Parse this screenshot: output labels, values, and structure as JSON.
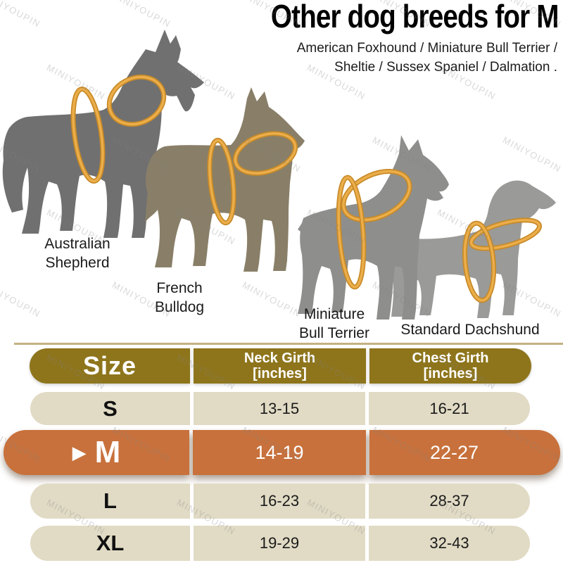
{
  "title": "Other dog breeds for M",
  "subtitle": {
    "line1": "American Foxhound / Miniature Bull Terrier /",
    "line2": "Sheltie / Sussex Spaniel / Dalmation ."
  },
  "watermark": "MINIYOUPIN",
  "dogs": [
    {
      "label_line1": "Australian",
      "label_line2": "Shepherd"
    },
    {
      "label_line1": "French",
      "label_line2": "Bulldog"
    },
    {
      "label_line1": "Miniature",
      "label_line2": "Bull Terrier"
    },
    {
      "label_line1": "Standard Dachshund",
      "label_line2": ""
    }
  ],
  "table": {
    "headers": [
      {
        "line1": "Size",
        "line2": ""
      },
      {
        "line1": "Neck Girth",
        "line2": "[inches]"
      },
      {
        "line1": "Chest Girth",
        "line2": "[inches]"
      }
    ],
    "selected_marker": "▶",
    "rows": [
      {
        "size": "S",
        "neck": "13-15",
        "chest": "16-21",
        "selected": false
      },
      {
        "size": "M",
        "neck": "14-19",
        "chest": "22-27",
        "selected": true
      },
      {
        "size": "L",
        "neck": "16-23",
        "chest": "28-37",
        "selected": false
      },
      {
        "size": "XL",
        "neck": "19-29",
        "chest": "32-43",
        "selected": false
      }
    ]
  },
  "colors": {
    "header_bg": "#8E751C",
    "row_bg": "#E1DBC5",
    "selected_bg": "#C8713C",
    "rule_line": "#A8914B",
    "harness_dark": "#C78A28",
    "harness_light": "#ECAE4A",
    "dog_fills": [
      "#707070",
      "#897F68",
      "#8E8E8C",
      "#9A9A98"
    ]
  }
}
